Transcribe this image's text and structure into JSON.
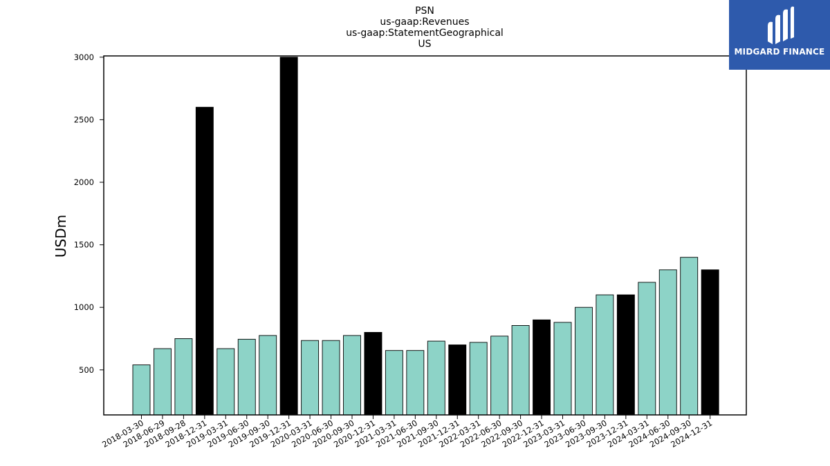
{
  "chart_data": {
    "type": "bar",
    "title_lines": [
      "PSN",
      "us-gaap:Revenues",
      "us-gaap:StatementGeographical",
      "US"
    ],
    "xlabel": "",
    "ylabel": "USDm",
    "ylim": [
      140,
      3010
    ],
    "yticks": [
      500,
      1000,
      1500,
      2000,
      2500,
      3000
    ],
    "categories": [
      "2018-03-30",
      "2018-06-29",
      "2018-09-28",
      "2018-12-31",
      "2019-03-31",
      "2019-06-30",
      "2019-09-30",
      "2019-12-31",
      "2020-03-31",
      "2020-06-30",
      "2020-09-30",
      "2020-12-31",
      "2021-03-31",
      "2021-06-30",
      "2021-09-30",
      "2021-12-31",
      "2022-03-31",
      "2022-06-30",
      "2022-09-30",
      "2022-12-31",
      "2023-03-31",
      "2023-06-30",
      "2023-09-30",
      "2023-12-31",
      "2024-03-31",
      "2024-06-30",
      "2024-09-30",
      "2024-12-31"
    ],
    "values": [
      540,
      670,
      750,
      2600,
      670,
      745,
      775,
      3000,
      735,
      735,
      775,
      800,
      655,
      655,
      730,
      700,
      720,
      770,
      855,
      900,
      880,
      1000,
      1100,
      1100,
      1200,
      1300,
      1400,
      1300
    ],
    "highlight": [
      false,
      false,
      false,
      true,
      false,
      false,
      false,
      true,
      false,
      false,
      false,
      true,
      false,
      false,
      false,
      true,
      false,
      false,
      false,
      true,
      false,
      false,
      false,
      true,
      false,
      false,
      false,
      true
    ],
    "colors": {
      "bar": "#8dd3c7",
      "highlight": "#000000",
      "edge": "#000000"
    },
    "grid": false,
    "legend": "none"
  },
  "logo": {
    "text": "MIDGARD FINANCE",
    "background": "#2e5aac"
  }
}
